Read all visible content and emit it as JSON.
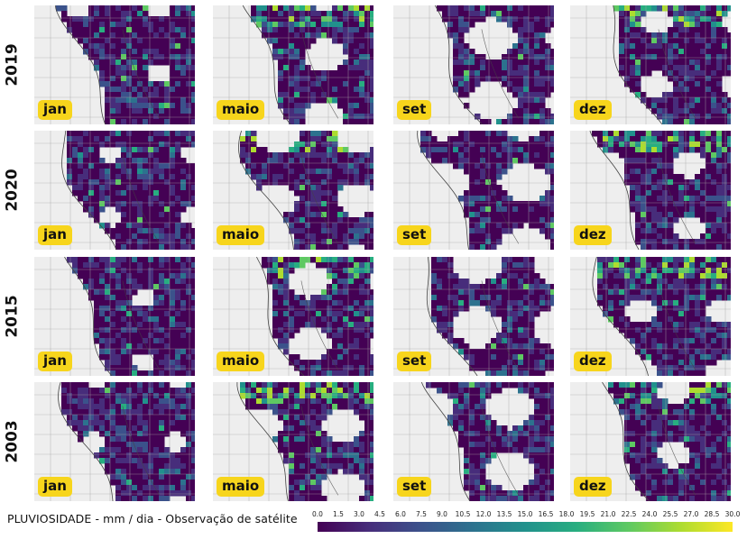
{
  "rows": [
    {
      "year": "2019",
      "panels": [
        {
          "month": "jan",
          "seed": 11
        },
        {
          "month": "maio",
          "seed": 12
        },
        {
          "month": "set",
          "seed": 13
        },
        {
          "month": "dez",
          "seed": 14
        }
      ]
    },
    {
      "year": "2020",
      "panels": [
        {
          "month": "jan",
          "seed": 21
        },
        {
          "month": "maio",
          "seed": 22
        },
        {
          "month": "set",
          "seed": 23
        },
        {
          "month": "dez",
          "seed": 24
        }
      ]
    },
    {
      "year": "2015",
      "panels": [
        {
          "month": "jan",
          "seed": 31
        },
        {
          "month": "maio",
          "seed": 32
        },
        {
          "month": "set",
          "seed": 33
        },
        {
          "month": "dez",
          "seed": 34
        }
      ]
    },
    {
      "year": "2003",
      "panels": [
        {
          "month": "jan",
          "seed": 41
        },
        {
          "month": "maio",
          "seed": 42
        },
        {
          "month": "set",
          "seed": 43
        },
        {
          "month": "dez",
          "seed": 44
        }
      ]
    }
  ],
  "caption": "PLUVIOSIDADE - mm / dia -  Observação de satélite",
  "colorbar": {
    "unit": "mm / dia",
    "min": 0.0,
    "max": 30.0,
    "ticks": [
      "0.0",
      "1.5",
      "3.0",
      "4.5",
      "6.0",
      "7.5",
      "9.0",
      "10.5",
      "12.0",
      "13.5",
      "15.0",
      "16.5",
      "18.0",
      "19.5",
      "21.0",
      "22.5",
      "24.0",
      "25.5",
      "27.0",
      "28.5",
      "30.0"
    ],
    "colors": [
      "#440154",
      "#472d7b",
      "#3b528b",
      "#2c728e",
      "#21918c",
      "#28ae80",
      "#5ec962",
      "#addc30",
      "#fde725"
    ]
  },
  "colors": {
    "land": "#eeeeee",
    "grid": "#a8a8a8",
    "coast": "#444444",
    "badge": "#f7d51c"
  }
}
